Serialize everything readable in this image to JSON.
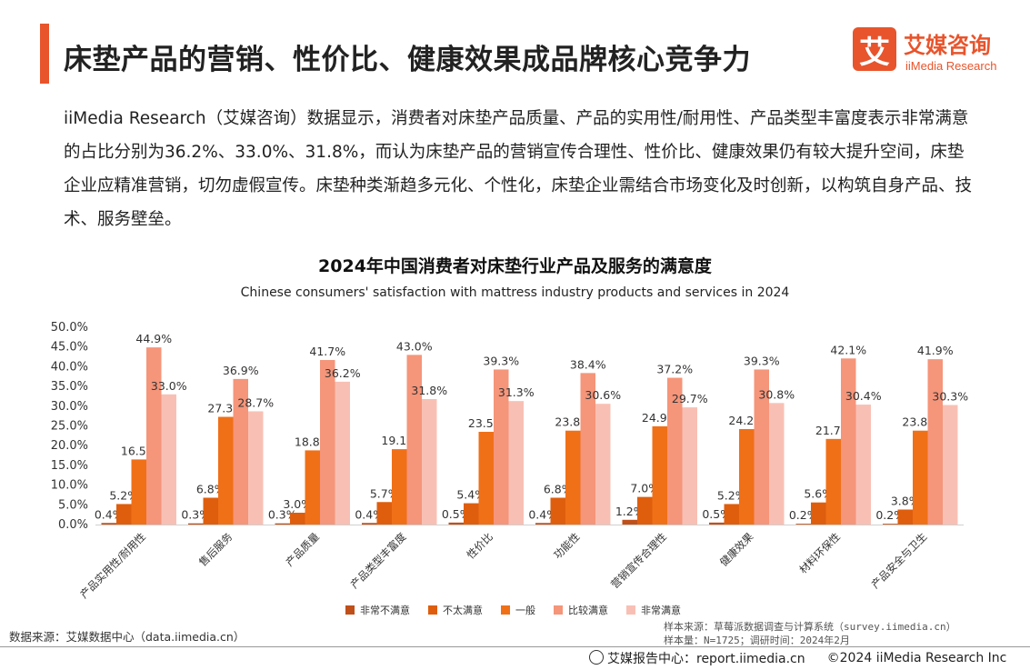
{
  "header": {
    "title": "床垫产品的营销、性价比、健康效果成品牌核心竞争力",
    "accent_color": "#e8542c"
  },
  "logo": {
    "mark": "艾",
    "name_cn": "艾媒咨询",
    "name_en": "iiMedia Research"
  },
  "intro": "iiMedia Research（艾媒咨询）数据显示，消费者对床垫产品质量、产品的实用性/耐用性、产品类型丰富度表示非常满意的占比分别为36.2%、33.0%、31.8%，而认为床垫产品的营销宣传合理性、性价比、健康效果仍有较大提升空间，床垫企业应精准营销，切勿虚假宣传。床垫种类渐趋多元化、个性化，床垫企业需结合市场变化及时创新，以构筑自身产品、技术、服务壁垒。",
  "chart_data": {
    "type": "bar",
    "title": "2024年中国消费者对床垫行业产品及服务的满意度",
    "subtitle": "Chinese consumers' satisfaction with mattress industry products and services in 2024",
    "categories": [
      "产品实用性/耐用性",
      "售后服务",
      "产品质量",
      "产品类型丰富度",
      "性价比",
      "功能性",
      "营销宣传合理性",
      "健康效果",
      "材料环保性",
      "产品安全与卫生"
    ],
    "series": [
      {
        "name": "非常不满意",
        "color": "#c0501a",
        "values": [
          0.4,
          0.3,
          0.3,
          0.4,
          0.5,
          0.4,
          1.2,
          0.5,
          0.2,
          0.2
        ]
      },
      {
        "name": "不太满意",
        "color": "#de5e0e",
        "values": [
          5.2,
          6.8,
          3.0,
          5.7,
          5.4,
          6.8,
          7.0,
          5.2,
          5.6,
          3.8
        ]
      },
      {
        "name": "一般",
        "color": "#f07018",
        "values": [
          16.5,
          27.3,
          18.8,
          19.1,
          23.5,
          23.8,
          24.9,
          24.2,
          21.7,
          23.8
        ]
      },
      {
        "name": "比较满意",
        "color": "#f5957a",
        "values": [
          44.9,
          36.9,
          41.7,
          43.0,
          39.3,
          38.4,
          37.2,
          39.3,
          42.1,
          41.9
        ]
      },
      {
        "name": "非常满意",
        "color": "#f8c0b4",
        "values": [
          33.0,
          28.7,
          36.2,
          31.8,
          31.3,
          30.6,
          29.7,
          30.8,
          30.4,
          30.3
        ]
      }
    ],
    "ylim": [
      0,
      50
    ],
    "yticks": [
      "0.0%",
      "5.0%",
      "10.0%",
      "15.0%",
      "20.0%",
      "25.0%",
      "30.0%",
      "35.0%",
      "40.0%",
      "45.0%",
      "50.0%"
    ],
    "grid": false,
    "legend": "bottom"
  },
  "notes": {
    "source": "数据来源：艾媒数据中心（data.iimedia.cn）",
    "sample_line1": "样本来源：草莓派数据调查与计算系统（survey.iimedia.cn）",
    "sample_line2": "样本量：N=1725；调研时间：2024年2月"
  },
  "footer": {
    "report_center": "艾媒报告中心：report.iimedia.cn",
    "copyright": "©2024  iiMedia Research  Inc"
  }
}
